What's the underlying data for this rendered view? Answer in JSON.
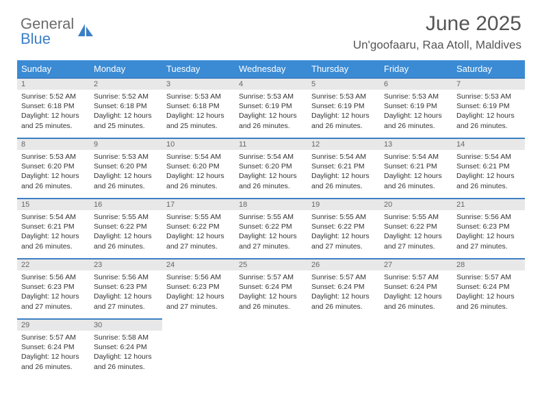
{
  "brand": {
    "word1": "General",
    "word2": "Blue"
  },
  "title": "June 2025",
  "location": "Un'goofaaru, Raa Atoll, Maldives",
  "headerColor": "#3b8bd4",
  "borderColor": "#3b7fc4",
  "dayHeaders": [
    "Sunday",
    "Monday",
    "Tuesday",
    "Wednesday",
    "Thursday",
    "Friday",
    "Saturday"
  ],
  "weeks": [
    [
      {
        "n": "1",
        "sr": "5:52 AM",
        "ss": "6:18 PM",
        "dl": "12 hours and 25 minutes."
      },
      {
        "n": "2",
        "sr": "5:52 AM",
        "ss": "6:18 PM",
        "dl": "12 hours and 25 minutes."
      },
      {
        "n": "3",
        "sr": "5:53 AM",
        "ss": "6:18 PM",
        "dl": "12 hours and 25 minutes."
      },
      {
        "n": "4",
        "sr": "5:53 AM",
        "ss": "6:19 PM",
        "dl": "12 hours and 26 minutes."
      },
      {
        "n": "5",
        "sr": "5:53 AM",
        "ss": "6:19 PM",
        "dl": "12 hours and 26 minutes."
      },
      {
        "n": "6",
        "sr": "5:53 AM",
        "ss": "6:19 PM",
        "dl": "12 hours and 26 minutes."
      },
      {
        "n": "7",
        "sr": "5:53 AM",
        "ss": "6:19 PM",
        "dl": "12 hours and 26 minutes."
      }
    ],
    [
      {
        "n": "8",
        "sr": "5:53 AM",
        "ss": "6:20 PM",
        "dl": "12 hours and 26 minutes."
      },
      {
        "n": "9",
        "sr": "5:53 AM",
        "ss": "6:20 PM",
        "dl": "12 hours and 26 minutes."
      },
      {
        "n": "10",
        "sr": "5:54 AM",
        "ss": "6:20 PM",
        "dl": "12 hours and 26 minutes."
      },
      {
        "n": "11",
        "sr": "5:54 AM",
        "ss": "6:20 PM",
        "dl": "12 hours and 26 minutes."
      },
      {
        "n": "12",
        "sr": "5:54 AM",
        "ss": "6:21 PM",
        "dl": "12 hours and 26 minutes."
      },
      {
        "n": "13",
        "sr": "5:54 AM",
        "ss": "6:21 PM",
        "dl": "12 hours and 26 minutes."
      },
      {
        "n": "14",
        "sr": "5:54 AM",
        "ss": "6:21 PM",
        "dl": "12 hours and 26 minutes."
      }
    ],
    [
      {
        "n": "15",
        "sr": "5:54 AM",
        "ss": "6:21 PM",
        "dl": "12 hours and 26 minutes."
      },
      {
        "n": "16",
        "sr": "5:55 AM",
        "ss": "6:22 PM",
        "dl": "12 hours and 26 minutes."
      },
      {
        "n": "17",
        "sr": "5:55 AM",
        "ss": "6:22 PM",
        "dl": "12 hours and 27 minutes."
      },
      {
        "n": "18",
        "sr": "5:55 AM",
        "ss": "6:22 PM",
        "dl": "12 hours and 27 minutes."
      },
      {
        "n": "19",
        "sr": "5:55 AM",
        "ss": "6:22 PM",
        "dl": "12 hours and 27 minutes."
      },
      {
        "n": "20",
        "sr": "5:55 AM",
        "ss": "6:22 PM",
        "dl": "12 hours and 27 minutes."
      },
      {
        "n": "21",
        "sr": "5:56 AM",
        "ss": "6:23 PM",
        "dl": "12 hours and 27 minutes."
      }
    ],
    [
      {
        "n": "22",
        "sr": "5:56 AM",
        "ss": "6:23 PM",
        "dl": "12 hours and 27 minutes."
      },
      {
        "n": "23",
        "sr": "5:56 AM",
        "ss": "6:23 PM",
        "dl": "12 hours and 27 minutes."
      },
      {
        "n": "24",
        "sr": "5:56 AM",
        "ss": "6:23 PM",
        "dl": "12 hours and 27 minutes."
      },
      {
        "n": "25",
        "sr": "5:57 AM",
        "ss": "6:24 PM",
        "dl": "12 hours and 26 minutes."
      },
      {
        "n": "26",
        "sr": "5:57 AM",
        "ss": "6:24 PM",
        "dl": "12 hours and 26 minutes."
      },
      {
        "n": "27",
        "sr": "5:57 AM",
        "ss": "6:24 PM",
        "dl": "12 hours and 26 minutes."
      },
      {
        "n": "28",
        "sr": "5:57 AM",
        "ss": "6:24 PM",
        "dl": "12 hours and 26 minutes."
      }
    ],
    [
      {
        "n": "29",
        "sr": "5:57 AM",
        "ss": "6:24 PM",
        "dl": "12 hours and 26 minutes."
      },
      {
        "n": "30",
        "sr": "5:58 AM",
        "ss": "6:24 PM",
        "dl": "12 hours and 26 minutes."
      },
      null,
      null,
      null,
      null,
      null
    ]
  ],
  "labels": {
    "sunrise": "Sunrise:",
    "sunset": "Sunset:",
    "daylight": "Daylight:"
  }
}
